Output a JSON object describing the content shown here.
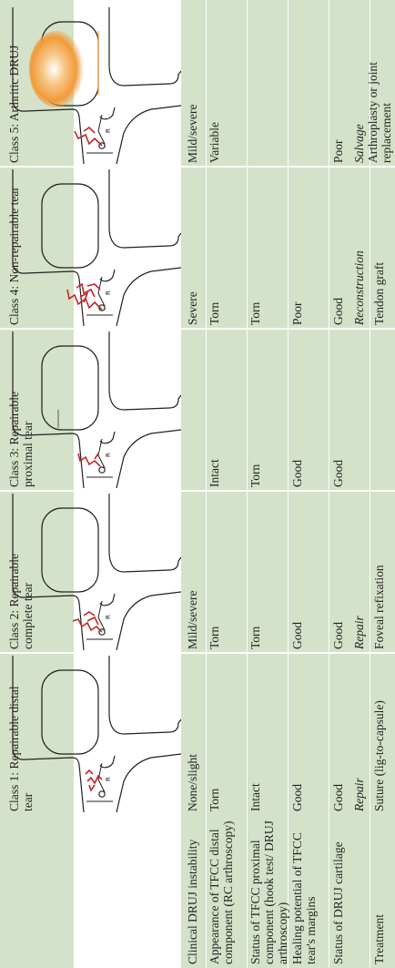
{
  "classes": [
    {
      "title": "Class 1: Repairable distal tear",
      "instability": "None/slight",
      "tfcc_distal": "Torn",
      "tfcc_proximal": "Intact",
      "healing": "Good",
      "cartilage": "Good",
      "treatment_type": "Repair",
      "treatment_detail": "Suture (lig-to-capsule)"
    },
    {
      "title": "Class 2: Repairable complete tear",
      "instability": "Mild/severe",
      "tfcc_distal": "Torn",
      "tfcc_proximal": "Torn",
      "healing": "Good",
      "cartilage": "Good",
      "treatment_type": "Repair",
      "treatment_detail": "Foveal refixation"
    },
    {
      "title": "Class 3: Repairable proximal tear",
      "instability": "",
      "tfcc_distal": "Intact",
      "tfcc_proximal": "Torn",
      "healing": "Good",
      "cartilage": "Good",
      "treatment_type": "",
      "treatment_detail": ""
    },
    {
      "title": "Class 4: Non-repairable tear",
      "instability": "Severe",
      "tfcc_distal": "Torn",
      "tfcc_proximal": "Torn",
      "healing": "Poor",
      "cartilage": "Good",
      "treatment_type": "Reconstruction",
      "treatment_detail": "Tendon graft"
    },
    {
      "title": "Class 5: Arthritic DRUJ",
      "instability": "Mild/severe",
      "tfcc_distal": "Variable",
      "tfcc_proximal": "",
      "healing": "",
      "cartilage": "Poor",
      "treatment_type": "Salvage",
      "treatment_detail": "Arthroplasty or joint replacement"
    }
  ],
  "row_labels": {
    "instability": "Clinical DRUJ instability",
    "tfcc_distal": "Appearance of TFCC distal component (RC arthroscopy)",
    "tfcc_proximal": "Status of TFCC proximal component (hook test/ DRUJ arthroscopy)",
    "healing": "Healing potential of TFCC tear's margins",
    "cartilage": "Status of DRUJ cartilage",
    "treatment": "Treatment"
  },
  "colors": {
    "band": "#d3e2c8",
    "tear": "#c1272d",
    "outline": "#231f20",
    "capsule": "#8a8a8a",
    "arthritis": "#f29a3a"
  }
}
